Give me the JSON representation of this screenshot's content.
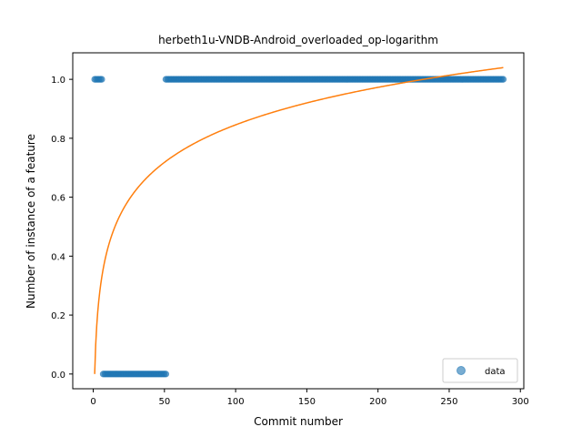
{
  "chart_data": {
    "type": "scatter",
    "title": "herbeth1u-VNDB-Android_overloaded_op-logarithm",
    "xlabel": "Commit number",
    "ylabel": "Number of instance of a feature",
    "xlim": [
      -14.4,
      302.4
    ],
    "ylim": [
      -0.05,
      1.09
    ],
    "xticks": [
      0,
      50,
      100,
      150,
      200,
      250,
      300
    ],
    "xtick_labels": [
      "0",
      "50",
      "100",
      "150",
      "200",
      "250",
      "300"
    ],
    "yticks": [
      0.0,
      0.2,
      0.4,
      0.6,
      0.8,
      1.0
    ],
    "ytick_labels": [
      "0.0",
      "0.2",
      "0.4",
      "0.6",
      "0.8",
      "1.0"
    ],
    "grid": false,
    "legend_position": "lower right",
    "series": [
      {
        "name": "data",
        "kind": "scatter",
        "color": "#1f77b4",
        "segments": [
          {
            "x_start": 1,
            "x_end": 6,
            "y": 1.0
          },
          {
            "x_start": 7,
            "x_end": 51,
            "y": 0.0
          },
          {
            "x_start": 51,
            "x_end": 288,
            "y": 1.0
          }
        ]
      },
      {
        "kind": "line",
        "color": "#ff7f0e",
        "model": "a + b*ln(x)",
        "a": 0.0,
        "b": 0.1836,
        "x_range": [
          1,
          288
        ]
      }
    ]
  }
}
